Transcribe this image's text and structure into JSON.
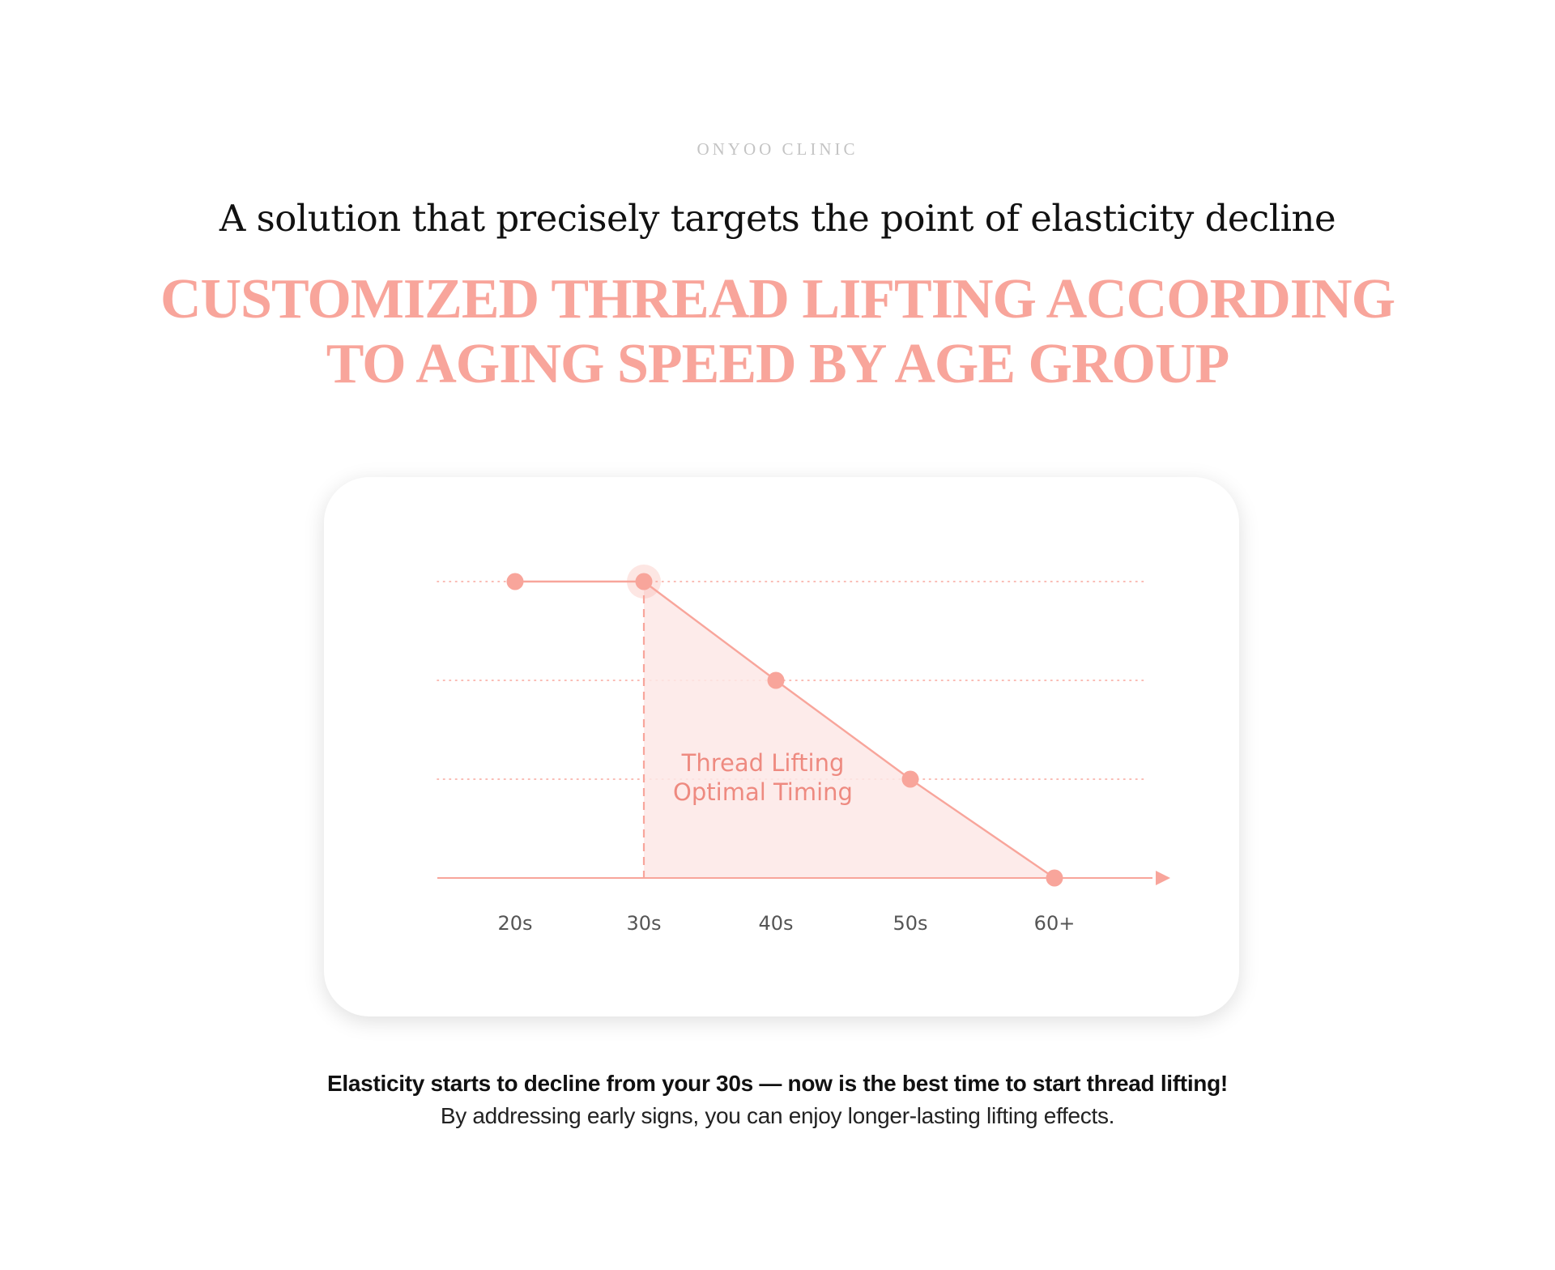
{
  "brand": "ONYOO CLINIC",
  "subtitle": "A solution that precisely targets the point of elasticity decline",
  "headline": {
    "line1": "CUSTOMIZED THREAD LIFTING ACCORDING",
    "line2": "TO AGING SPEED BY AGE GROUP"
  },
  "colors": {
    "accent": "#f8a59b",
    "accent_dark": "#ee8a80",
    "fill": "#fde8e6",
    "tick_text": "#555555"
  },
  "chart_data": {
    "type": "line",
    "categories": [
      "20s",
      "30s",
      "40s",
      "50s",
      "60+"
    ],
    "values": [
      3,
      3,
      2,
      1,
      0
    ],
    "highlight_index": 1,
    "annotation": {
      "line1": "Thread Lifting",
      "line2": "Optimal Timing"
    },
    "title": "",
    "xlabel": "",
    "ylabel": "",
    "ylim": [
      0,
      3
    ],
    "grid": true,
    "legend": "none"
  },
  "caption": {
    "strong": "Elasticity starts to decline from your 30s — now is the best time to start thread lifting!",
    "light": "By addressing early signs, you can enjoy longer-lasting lifting effects."
  }
}
